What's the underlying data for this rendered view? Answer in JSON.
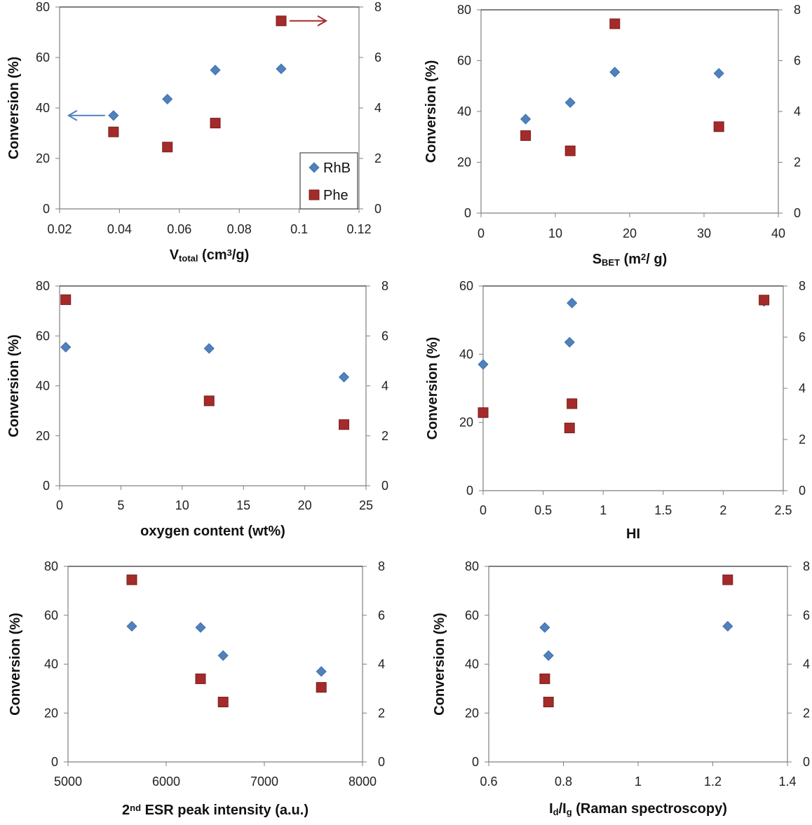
{
  "colors": {
    "rhb": "#4f81bd",
    "phe": "#a52a2a",
    "axis": "#808080",
    "text": "#222222"
  },
  "legend": {
    "items": [
      "RhB",
      "Phe"
    ]
  },
  "chart_data": [
    {
      "id": "vtotal",
      "type": "scatter",
      "xlabel": "V",
      "xlabel_sub": "total",
      "xlabel_rest": " (cm",
      "xlabel_sup": "3",
      "xlabel_end": "/g)",
      "ylabel": "Conversion (%)",
      "xlim": [
        0.02,
        0.12
      ],
      "xticks": [
        "0.02",
        "0.04",
        "0.06",
        "0.08",
        "0.1",
        "0.12"
      ],
      "xtick_values": [
        0.02,
        0.04,
        0.06,
        0.08,
        0.1,
        0.12
      ],
      "ylim": [
        0,
        80
      ],
      "yticks": [
        "0",
        "20",
        "40",
        "60",
        "80"
      ],
      "y2lim": [
        0,
        8
      ],
      "y2ticks": [
        "0",
        "2",
        "4",
        "6",
        "8"
      ],
      "series": [
        {
          "name": "RhB",
          "axis": "left",
          "x": [
            0.038,
            0.056,
            0.072,
            0.094
          ],
          "y": [
            37,
            43.5,
            55,
            55.5
          ]
        },
        {
          "name": "Phe",
          "axis": "right",
          "x": [
            0.038,
            0.056,
            0.072,
            0.094
          ],
          "y": [
            3.05,
            2.45,
            3.4,
            7.45
          ]
        }
      ],
      "legend": true,
      "arrows": true
    },
    {
      "id": "sbet",
      "type": "scatter",
      "xlabel": "S",
      "xlabel_sub": "BET",
      "xlabel_rest": " (m",
      "xlabel_sup": "2",
      "xlabel_end": "/ g)",
      "ylabel": "Conversion (%)",
      "xlim": [
        0,
        40
      ],
      "xticks": [
        "0",
        "10",
        "20",
        "30",
        "40"
      ],
      "xtick_values": [
        0,
        10,
        20,
        30,
        40
      ],
      "ylim": [
        0,
        80
      ],
      "yticks": [
        "0",
        "20",
        "40",
        "60",
        "80"
      ],
      "y2lim": [
        0,
        8
      ],
      "y2ticks": [
        "0",
        "2",
        "4",
        "6",
        "8"
      ],
      "series": [
        {
          "name": "RhB",
          "axis": "left",
          "x": [
            6,
            12,
            18,
            32
          ],
          "y": [
            37,
            43.5,
            55.5,
            55
          ]
        },
        {
          "name": "Phe",
          "axis": "right",
          "x": [
            6,
            12,
            18,
            32
          ],
          "y": [
            3.05,
            2.45,
            7.45,
            3.4
          ]
        }
      ]
    },
    {
      "id": "oxygen",
      "type": "scatter",
      "xlabel": "oxygen content (wt%)",
      "ylabel": "Conversion (%)",
      "xlim": [
        0,
        25
      ],
      "xticks": [
        "0",
        "5",
        "10",
        "15",
        "20",
        "25"
      ],
      "xtick_values": [
        0,
        5,
        10,
        15,
        20,
        25
      ],
      "ylim": [
        0,
        80
      ],
      "yticks": [
        "0",
        "20",
        "40",
        "60",
        "80"
      ],
      "y2lim": [
        0,
        8
      ],
      "y2ticks": [
        "0",
        "2",
        "4",
        "6",
        "8"
      ],
      "series": [
        {
          "name": "RhB",
          "axis": "left",
          "x": [
            0.5,
            12.2,
            23.2
          ],
          "y": [
            55.5,
            55,
            43.5
          ]
        },
        {
          "name": "Phe",
          "axis": "right",
          "x": [
            0.5,
            12.2,
            23.2
          ],
          "y": [
            7.45,
            3.4,
            2.45
          ]
        }
      ]
    },
    {
      "id": "hi",
      "type": "scatter",
      "xlabel": "HI",
      "ylabel": "Conversion (%)",
      "xlim": [
        0,
        2.5
      ],
      "xticks": [
        "0",
        "0.5",
        "1",
        "1.5",
        "2",
        "2.5"
      ],
      "xtick_values": [
        0,
        0.5,
        1,
        1.5,
        2,
        2.5
      ],
      "ylim": [
        0,
        60
      ],
      "yticks": [
        "0",
        "20",
        "40",
        "60"
      ],
      "y2lim": [
        0,
        8
      ],
      "y2ticks": [
        "0",
        "2",
        "4",
        "6",
        "8"
      ],
      "series": [
        {
          "name": "RhB",
          "axis": "left",
          "x": [
            0,
            0.72,
            0.74,
            2.34
          ],
          "y": [
            37,
            43.5,
            55,
            55.5
          ]
        },
        {
          "name": "Phe",
          "axis": "right",
          "x": [
            0,
            0.72,
            0.74,
            2.34
          ],
          "y": [
            3.05,
            2.45,
            3.4,
            7.45
          ]
        }
      ]
    },
    {
      "id": "esr",
      "type": "scatter",
      "xlabel": "2",
      "xlabel_sup": "nd",
      "xlabel_end": " ESR peak intensity (a.u.)",
      "ylabel": "Conversion (%)",
      "xlim": [
        5000,
        8000
      ],
      "xticks": [
        "5000",
        "6000",
        "7000",
        "8000"
      ],
      "xtick_values": [
        5000,
        6000,
        7000,
        8000
      ],
      "ylim": [
        0,
        80
      ],
      "yticks": [
        "0",
        "20",
        "40",
        "60",
        "80"
      ],
      "y2lim": [
        0,
        8
      ],
      "y2ticks": [
        "0",
        "2",
        "4",
        "6",
        "8"
      ],
      "series": [
        {
          "name": "RhB",
          "axis": "left",
          "x": [
            5650,
            6350,
            6580,
            7580
          ],
          "y": [
            55.5,
            55,
            43.5,
            37
          ]
        },
        {
          "name": "Phe",
          "axis": "right",
          "x": [
            5650,
            6350,
            6580,
            7580
          ],
          "y": [
            7.45,
            3.4,
            2.45,
            3.05
          ]
        }
      ]
    },
    {
      "id": "raman",
      "type": "scatter",
      "xlabel": "I",
      "xlabel_sub": "d",
      "xlabel_rest": "/I",
      "xlabel_sub2": "g",
      "xlabel_end": " (Raman spectroscopy)",
      "ylabel": "Conversion (%)",
      "xlim": [
        0.6,
        1.4
      ],
      "xticks": [
        "0.6",
        "0.8",
        "1",
        "1.2",
        "1.4"
      ],
      "xtick_values": [
        0.6,
        0.8,
        1,
        1.2,
        1.4
      ],
      "ylim": [
        0,
        80
      ],
      "yticks": [
        "0",
        "20",
        "40",
        "60",
        "80"
      ],
      "y2lim": [
        0,
        8
      ],
      "y2ticks": [
        "0",
        "2",
        "4",
        "6",
        "8"
      ],
      "series": [
        {
          "name": "RhB",
          "axis": "left",
          "x": [
            0.75,
            0.76,
            1.24
          ],
          "y": [
            55,
            43.5,
            55.5
          ]
        },
        {
          "name": "Phe",
          "axis": "right",
          "x": [
            0.75,
            0.76,
            1.24
          ],
          "y": [
            3.4,
            2.45,
            7.45
          ]
        }
      ]
    }
  ]
}
